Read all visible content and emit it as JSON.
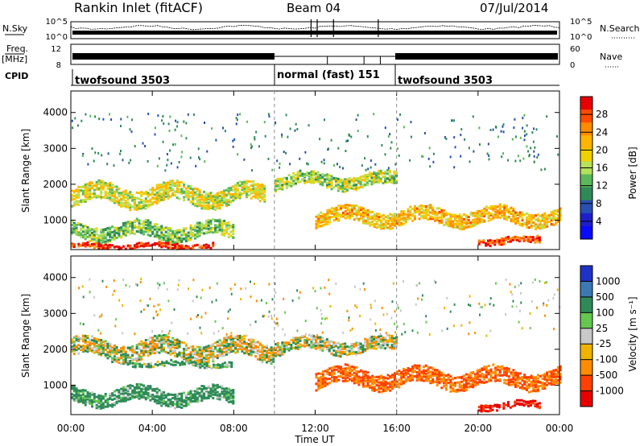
{
  "header": {
    "station": "Rankin Inlet (fitACF)",
    "beam": "Beam 04",
    "date": "07/Jul/2014"
  },
  "top_panels": {
    "nsky_label": "N.Sky",
    "nsearch_label": "N.Search",
    "nsky_ticks": [
      "10^5",
      "10^0"
    ],
    "nsearch_ticks": [
      "10^5",
      "10^0"
    ],
    "freq_label": "Freq.",
    "freq_unit": "[MHz]",
    "freq_ticks": [
      "12",
      "8"
    ],
    "nave_label": "Nave",
    "nave_ticks": [
      "60",
      "0"
    ],
    "cpid_label": "CPID",
    "cpid_segments": [
      {
        "label": "twofsound 3503",
        "start": 0,
        "end": 10
      },
      {
        "label": "normal (fast) 151",
        "start": 10,
        "end": 16
      },
      {
        "label": "twofsound 3503",
        "start": 16,
        "end": 24
      }
    ]
  },
  "axes": {
    "ylabel": "Slant Range [km]",
    "yticks": [
      "4000",
      "3000",
      "2000",
      "1000"
    ],
    "xlabel": "Time UT",
    "xticks": [
      "00:00",
      "04:00",
      "08:00",
      "12:00",
      "16:00",
      "20:00",
      "00:00"
    ]
  },
  "power_colorbar": {
    "label": "Power [dB]",
    "ticks": [
      "28",
      "24",
      "20",
      "16",
      "12",
      "8",
      "4"
    ],
    "colors": [
      "#e80000",
      "#ff4a00",
      "#ff8c00",
      "#ffb400",
      "#f0d000",
      "#b4e05a",
      "#5ab85a",
      "#2e8b57",
      "#2850b4",
      "#1e1ecc",
      "#0a0aff"
    ]
  },
  "velocity_colorbar": {
    "label": "Velocity [m s⁻¹]",
    "ticks": [
      "1000",
      "500",
      "100",
      "25",
      "-25",
      "-100",
      "-500",
      "-1000"
    ],
    "colors": [
      "#1e32c8",
      "#3c78b4",
      "#2e8b57",
      "#64c850",
      "#c8c8c8",
      "#f0b400",
      "#ff8c00",
      "#ff4000",
      "#e80000"
    ]
  },
  "chart_data": [
    {
      "type": "heatmap",
      "title": "Power",
      "xlabel": "Time UT",
      "ylabel": "Slant Range [km]",
      "xlim": [
        0,
        24
      ],
      "ylim": [
        180,
        4600
      ],
      "colorbar_label": "Power [dB]",
      "colorbar_range": [
        0,
        32
      ],
      "echo_bands": [
        {
          "t_start": 0,
          "t_end": 9.5,
          "range_km": 1700,
          "width_km": 500,
          "dB": 18
        },
        {
          "t_start": 0,
          "t_end": 8,
          "range_km": 700,
          "width_km": 400,
          "dB": 14
        },
        {
          "t_start": 0,
          "t_end": 7,
          "range_km": 300,
          "width_km": 150,
          "dB": 30
        },
        {
          "t_start": 10,
          "t_end": 16,
          "range_km": 2100,
          "width_km": 350,
          "dB": 16
        },
        {
          "t_start": 12,
          "t_end": 24,
          "range_km": 1100,
          "width_km": 400,
          "dB": 22
        },
        {
          "t_start": 20,
          "t_end": 23,
          "range_km": 450,
          "width_km": 200,
          "dB": 30
        }
      ]
    },
    {
      "type": "heatmap",
      "title": "Velocity",
      "xlabel": "Time UT",
      "ylabel": "Slant Range [km]",
      "xlim": [
        0,
        24
      ],
      "ylim": [
        180,
        4600
      ],
      "colorbar_label": "Velocity [m s⁻¹]",
      "colorbar_range": [
        -1000,
        1000
      ],
      "echo_bands": [
        {
          "t_start": 0,
          "t_end": 10,
          "range_km": 2000,
          "width_km": 500,
          "velocity": 0
        },
        {
          "t_start": 3,
          "t_end": 8,
          "range_km": 1600,
          "width_km": 150,
          "velocity": 100
        },
        {
          "t_start": 0,
          "t_end": 8,
          "range_km": 700,
          "width_km": 400,
          "velocity": 150
        },
        {
          "t_start": 10,
          "t_end": 16,
          "range_km": 2100,
          "width_km": 350,
          "velocity": 0
        },
        {
          "t_start": 12,
          "t_end": 24,
          "range_km": 1200,
          "width_km": 450,
          "velocity": -300
        },
        {
          "t_start": 20,
          "t_end": 23,
          "range_km": 450,
          "width_km": 200,
          "velocity": -800
        }
      ]
    }
  ]
}
